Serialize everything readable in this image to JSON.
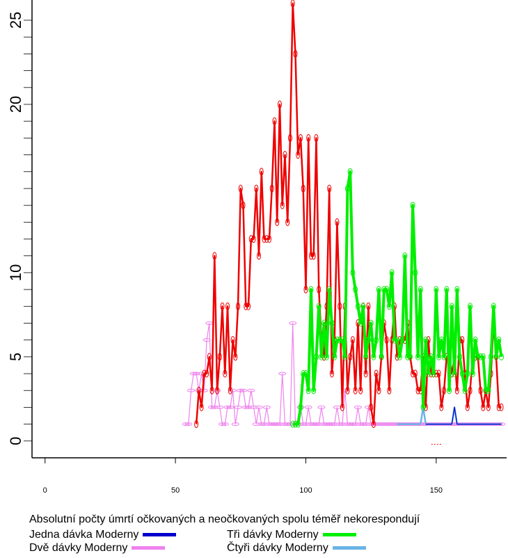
{
  "chart_data": {
    "type": "line",
    "title": "",
    "xlabel": "",
    "ylabel": "",
    "xlim": [
      -5,
      177
    ],
    "ylim": [
      -1,
      26.2
    ],
    "x_ticks": [
      0,
      50,
      100,
      150
    ],
    "y_ticks": [
      0,
      5,
      10,
      20,
      25
    ],
    "colors": {
      "red": "#ee0000",
      "green": "#00ee00",
      "violet": "#ee82ee",
      "blue": "#0000cd",
      "skyblue": "#6ab4e6"
    },
    "red_series": {
      "x": [
        58,
        59,
        60,
        61,
        62,
        63,
        64,
        65,
        66,
        67,
        68,
        69,
        70,
        71,
        72,
        73,
        74,
        75,
        76,
        77,
        78,
        79,
        80,
        81,
        82,
        83,
        84,
        85,
        86,
        87,
        88,
        89,
        90,
        91,
        92,
        93,
        94,
        95,
        96,
        97,
        98,
        99,
        100,
        101,
        102,
        103,
        104,
        105,
        106,
        107,
        108,
        109,
        110,
        111,
        112,
        113,
        114,
        115,
        116,
        117,
        118,
        119,
        120,
        121,
        122,
        123,
        124,
        125,
        126,
        127,
        128,
        129,
        130,
        131,
        132,
        133,
        134,
        135,
        136,
        137,
        138,
        139,
        140,
        141,
        142,
        143,
        144,
        145,
        146,
        147,
        148,
        149,
        150,
        151,
        152,
        153,
        154,
        155,
        156,
        157,
        158,
        159,
        160,
        161,
        162,
        163,
        164,
        165,
        166,
        167,
        168,
        169,
        170,
        171,
        172,
        173,
        174,
        175
      ],
      "y": [
        1,
        3,
        2,
        4,
        4,
        5,
        3,
        11,
        3,
        5,
        8,
        4,
        8,
        3,
        6,
        5,
        8,
        15,
        14,
        8,
        8,
        12,
        12,
        15,
        11,
        16,
        12,
        12,
        12,
        15,
        19,
        13,
        20,
        14,
        17,
        13,
        18,
        26,
        23,
        17,
        18,
        15,
        9,
        18,
        11,
        11,
        18,
        9,
        6,
        5,
        8,
        15,
        4,
        6,
        13,
        8,
        2,
        8,
        3,
        5,
        6,
        3,
        7,
        3,
        8,
        4,
        8,
        2,
        1,
        4,
        3,
        5,
        7,
        6,
        3,
        6,
        8,
        5,
        6,
        6,
        6,
        7,
        5,
        4,
        4,
        3,
        3,
        5,
        2,
        6,
        4,
        4,
        4,
        4,
        2,
        3,
        5,
        5,
        4,
        5,
        3,
        6,
        6,
        4,
        2,
        3,
        5,
        5,
        5,
        3,
        2,
        3,
        2,
        4,
        7,
        5,
        2,
        2
      ]
    },
    "green_series": {
      "x": [
        95,
        96,
        97,
        98,
        99,
        100,
        101,
        102,
        103,
        104,
        105,
        106,
        107,
        108,
        109,
        110,
        111,
        112,
        113,
        114,
        115,
        116,
        117,
        118,
        119,
        120,
        121,
        122,
        123,
        124,
        125,
        126,
        127,
        128,
        129,
        130,
        131,
        132,
        133,
        134,
        135,
        136,
        137,
        138,
        139,
        140,
        141,
        142,
        143,
        144,
        145,
        146,
        147,
        148,
        149,
        150,
        151,
        152,
        153,
        154,
        155,
        156,
        157,
        158,
        159,
        160,
        161,
        162,
        163,
        164,
        165,
        166,
        167,
        168,
        169,
        170,
        171,
        172,
        173,
        174,
        175
      ],
      "y": [
        1,
        1,
        1,
        2,
        4,
        4,
        3,
        9,
        3,
        5,
        8,
        5,
        7,
        5,
        9,
        7,
        5,
        6,
        6,
        6,
        5,
        15,
        16,
        10,
        9,
        8,
        7,
        8,
        5,
        6,
        7,
        5,
        6,
        9,
        5,
        9,
        9,
        8,
        10,
        6,
        6,
        5,
        6,
        11,
        5,
        5,
        14,
        10,
        5,
        9,
        2,
        6,
        4,
        5,
        4,
        9,
        5,
        6,
        5,
        9,
        3,
        8,
        4,
        9,
        5,
        4,
        3,
        4,
        8,
        4,
        6,
        5,
        5,
        5,
        3,
        3,
        5,
        8,
        5,
        6,
        5
      ]
    },
    "violet_series": {
      "x": [
        54,
        55,
        56,
        57,
        58,
        59,
        60,
        61,
        62,
        63,
        64,
        65,
        66,
        67,
        68,
        69,
        70,
        71,
        72,
        73,
        74,
        75,
        76,
        77,
        78,
        79,
        80,
        81,
        82,
        83,
        84,
        85,
        86,
        87,
        88,
        89,
        90,
        91,
        92,
        93,
        94,
        95,
        96,
        97,
        98,
        99,
        100,
        101,
        102,
        103,
        104,
        105,
        106,
        107,
        108,
        109,
        110,
        111,
        112,
        113,
        114,
        115,
        116,
        117,
        118,
        119,
        120,
        121,
        122,
        123,
        124,
        125,
        126,
        127,
        128,
        129,
        130,
        131,
        132,
        133,
        134,
        135,
        136,
        137,
        138,
        139,
        140,
        141,
        142,
        143,
        144,
        145,
        146,
        147,
        148,
        149,
        150,
        151,
        152,
        153,
        154,
        155,
        156,
        157,
        158,
        159,
        160,
        161,
        162,
        163,
        164,
        165,
        166,
        167,
        168,
        169,
        170,
        171,
        172,
        173,
        174,
        175
      ],
      "y": [
        1,
        1,
        3,
        4,
        4,
        3,
        4,
        3,
        6,
        7,
        2,
        2,
        3,
        2,
        1,
        1,
        2,
        2,
        3,
        1,
        2,
        3,
        3,
        2,
        2,
        3,
        2,
        1,
        2,
        1,
        1,
        2,
        1,
        1,
        1,
        1,
        1,
        4,
        1,
        1,
        1,
        7,
        1,
        1,
        2,
        1,
        1,
        2,
        1,
        1,
        1,
        1,
        2,
        1,
        1,
        1,
        1,
        1,
        2,
        1,
        1,
        3,
        1,
        1,
        1,
        1,
        2,
        1,
        1,
        1,
        2,
        1,
        1,
        1,
        1,
        1,
        1,
        1,
        1,
        1,
        1,
        1,
        1,
        1,
        1,
        1,
        1,
        1,
        1,
        1,
        1,
        1,
        1,
        1,
        1,
        1,
        1,
        1,
        1,
        1,
        1,
        1,
        1,
        1,
        1,
        1,
        1,
        1,
        1,
        1,
        1,
        1,
        1,
        1,
        1,
        1,
        1,
        1,
        1,
        1,
        1,
        1
      ]
    },
    "blue_series": {
      "x": [
        146,
        147,
        148,
        149,
        150,
        151,
        152,
        153,
        154,
        155,
        156,
        157,
        158,
        159,
        160,
        161,
        162,
        163,
        164,
        165,
        166,
        167,
        168,
        169,
        170,
        171,
        172,
        173,
        174,
        175
      ],
      "y": [
        1,
        1,
        1,
        1,
        1,
        1,
        1,
        1,
        1,
        1,
        1,
        2,
        1,
        1,
        1,
        1,
        1,
        1,
        1,
        1,
        1,
        1,
        1,
        1,
        1,
        1,
        1,
        1,
        1,
        1
      ]
    },
    "skyblue_series": {
      "x": [
        135,
        136,
        137,
        138,
        139,
        140,
        141,
        142,
        143,
        144,
        145,
        146,
        147,
        148,
        149,
        150,
        151,
        152,
        153,
        154,
        155,
        156,
        157,
        158,
        159,
        160,
        161,
        162,
        163,
        164,
        165,
        166,
        167,
        168,
        169,
        170,
        171,
        172,
        173,
        174,
        175
      ],
      "y": [
        1,
        1,
        1,
        1,
        1,
        1,
        1,
        1,
        1,
        1,
        2,
        1,
        1,
        1,
        1,
        1,
        1,
        1,
        1,
        1,
        1,
        1,
        2,
        1,
        1,
        1,
        1,
        1,
        1,
        1,
        1,
        1,
        1,
        1,
        1,
        1,
        1,
        1,
        1,
        1,
        1
      ]
    },
    "stray_point": {
      "x": 150,
      "y": -0.2
    },
    "legend": {
      "caption": "Absolutní počty úmrtí očkovaných a neočkovaných spolu téměř nekorespondují",
      "items": [
        {
          "label": "Jedna dávka Moderny",
          "color": "#0000cd"
        },
        {
          "label": "Tři dávky Moderny",
          "color": "#00ee00"
        },
        {
          "label": "Dvě dávky Moderny",
          "color": "#ee82ee"
        },
        {
          "label": "Čtyři dávky Moderny",
          "color": "#6ab4e6"
        }
      ]
    }
  }
}
